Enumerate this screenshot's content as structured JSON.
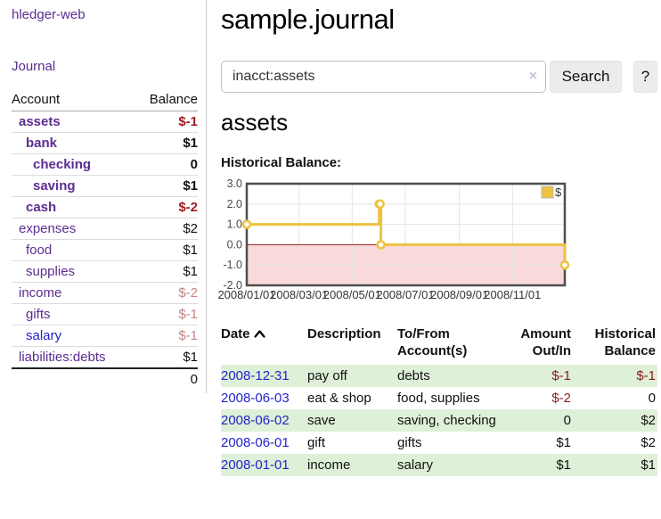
{
  "sidebar": {
    "brand": "hledger-web",
    "nav": {
      "journal": "Journal"
    },
    "accounts_table": {
      "headers": {
        "account": "Account",
        "balance": "Balance"
      },
      "rows": [
        {
          "name": "assets",
          "balance": "$-1",
          "depth": 1,
          "bold": true,
          "balance_style": "neg-strong",
          "link_color": "purple"
        },
        {
          "name": "bank",
          "balance": "$1",
          "depth": 2,
          "bold": true,
          "balance_style": "",
          "link_color": "purple"
        },
        {
          "name": "checking",
          "balance": "0",
          "depth": 3,
          "bold": true,
          "balance_style": "",
          "link_color": "purple"
        },
        {
          "name": "saving",
          "balance": "$1",
          "depth": 3,
          "bold": true,
          "balance_style": "",
          "link_color": "purple"
        },
        {
          "name": "cash",
          "balance": "$-2",
          "depth": 2,
          "bold": true,
          "balance_style": "neg-strong",
          "link_color": "purple"
        },
        {
          "name": "expenses",
          "balance": "$2",
          "depth": 1,
          "bold": false,
          "balance_style": "",
          "link_color": "purple"
        },
        {
          "name": "food",
          "balance": "$1",
          "depth": 2,
          "bold": false,
          "balance_style": "",
          "link_color": "purple"
        },
        {
          "name": "supplies",
          "balance": "$1",
          "depth": 2,
          "bold": false,
          "balance_style": "",
          "link_color": "purple"
        },
        {
          "name": "income",
          "balance": "$-2",
          "depth": 1,
          "bold": false,
          "balance_style": "neg-soft",
          "link_color": "purple"
        },
        {
          "name": "gifts",
          "balance": "$-1",
          "depth": 2,
          "bold": false,
          "balance_style": "neg-soft",
          "link_color": "purple"
        },
        {
          "name": "salary",
          "balance": "$-1",
          "depth": 2,
          "bold": false,
          "balance_style": "neg-soft",
          "link_color": "blue"
        },
        {
          "name": "liabilities:debts",
          "balance": "$1",
          "depth": 1,
          "bold": false,
          "balance_style": "",
          "link_color": "purple"
        }
      ],
      "total": "0"
    }
  },
  "main": {
    "title": "sample.journal",
    "search": {
      "value": "inacct:assets",
      "clear_icon": "×",
      "button": "Search",
      "help_button": "?"
    },
    "account_heading": "assets",
    "chart_label": "Historical Balance:",
    "register_table": {
      "headers": [
        {
          "label": "Date",
          "sortable": true
        },
        {
          "label": "Description",
          "sortable": false
        },
        {
          "label": "To/From Account(s)",
          "sortable": false
        },
        {
          "label": "Amount Out/In",
          "sortable": false,
          "align": "right"
        },
        {
          "label": "Historical Balance",
          "sortable": false,
          "align": "right"
        }
      ],
      "rows": [
        {
          "date": "2008-12-31",
          "description": "pay off",
          "accounts": "debts",
          "amount": "$-1",
          "amount_neg": true,
          "balance": "$-1",
          "balance_neg": true
        },
        {
          "date": "2008-06-03",
          "description": "eat & shop",
          "accounts": "food, supplies",
          "amount": "$-2",
          "amount_neg": true,
          "balance": "0",
          "balance_neg": false
        },
        {
          "date": "2008-06-02",
          "description": "save",
          "accounts": "saving, checking",
          "amount": "0",
          "amount_neg": false,
          "balance": "$2",
          "balance_neg": false
        },
        {
          "date": "2008-06-01",
          "description": "gift",
          "accounts": "gifts",
          "amount": "$1",
          "amount_neg": false,
          "balance": "$2",
          "balance_neg": false
        },
        {
          "date": "2008-01-01",
          "description": "income",
          "accounts": "salary",
          "amount": "$1",
          "amount_neg": false,
          "balance": "$1",
          "balance_neg": false
        }
      ]
    }
  },
  "chart_data": {
    "type": "line",
    "title": "Historical Balance:",
    "steps": true,
    "x_range": [
      "2008-01-01",
      "2008-12-31"
    ],
    "ylim": [
      -2,
      3
    ],
    "y_ticks": [
      3,
      2,
      1,
      0,
      -1,
      -2
    ],
    "x_ticks": [
      {
        "label": "2008/01/01",
        "date": "2008-01-01"
      },
      {
        "label": "2008/03/01",
        "date": "2008-03-01"
      },
      {
        "label": "2008/05/01",
        "date": "2008-05-01"
      },
      {
        "label": "2008/07/01",
        "date": "2008-07-01"
      },
      {
        "label": "2008/09/01",
        "date": "2008-09-01"
      },
      {
        "label": "2008/11/01",
        "date": "2008-11-01"
      }
    ],
    "legend_position": "top-right",
    "grid": true,
    "negative_region_shaded": true,
    "series": [
      {
        "name": "$",
        "color": "#edc240",
        "points": [
          {
            "date": "2008-01-01",
            "value": 1
          },
          {
            "date": "2008-06-01",
            "value": 2
          },
          {
            "date": "2008-06-02",
            "value": 2
          },
          {
            "date": "2008-06-03",
            "value": 0
          },
          {
            "date": "2008-12-31",
            "value": -1
          }
        ]
      }
    ]
  },
  "colors": {
    "link-purple": "#5b2d91",
    "link-blue": "#2323cc",
    "neg-strong": "#a01c1c",
    "neg-soft": "#c28585",
    "table-neg": "#8b1a1a",
    "row-green": "#dff0d8",
    "chart-line": "#edc240",
    "chart-neg-bg": "#f9d9d9",
    "chart-zero": "#8b1a1a",
    "chart-grid": "#e4e4e4",
    "chart-border": "#4f4f4f"
  }
}
